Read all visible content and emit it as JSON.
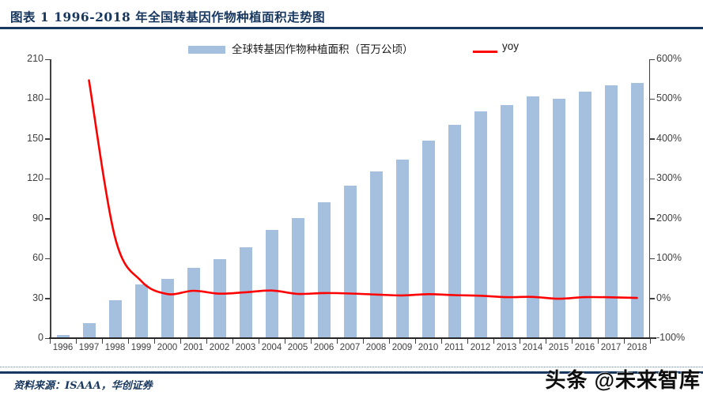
{
  "header": {
    "title": "图表 1  1996-2018 年全国转基因作物种植面积走势图"
  },
  "chart_data": {
    "type": "bar+line",
    "categories": [
      "1996",
      "1997",
      "1998",
      "1999",
      "2000",
      "2001",
      "2002",
      "2003",
      "2004",
      "2005",
      "2006",
      "2007",
      "2008",
      "2009",
      "2010",
      "2011",
      "2012",
      "2013",
      "2014",
      "2015",
      "2016",
      "2017",
      "2018"
    ],
    "series": [
      {
        "name": "全球转基因作物种植面积（百万公顷）",
        "type": "bar",
        "axis": "left",
        "color": "#A5BFDE",
        "values": [
          1.7,
          11.0,
          27.8,
          39.9,
          44.2,
          52.6,
          58.7,
          67.7,
          81.0,
          90.0,
          102.0,
          114.3,
          125.0,
          134.0,
          148.0,
          160.0,
          170.3,
          175.2,
          181.5,
          179.7,
          185.1,
          189.8,
          191.7
        ]
      },
      {
        "name": "yoy",
        "type": "line",
        "axis": "right",
        "color": "#FF0000",
        "values": [
          null,
          547.1,
          152.7,
          43.5,
          10.8,
          19.0,
          11.6,
          15.3,
          19.6,
          11.1,
          13.3,
          12.1,
          9.4,
          7.2,
          10.4,
          8.1,
          6.4,
          2.9,
          3.6,
          -1.0,
          3.0,
          2.5,
          1.0
        ]
      }
    ],
    "left_axis": {
      "min": 0,
      "max": 210,
      "step": 30,
      "tick_labels": [
        "210",
        "180",
        "150",
        "120",
        "90",
        "60",
        "30",
        "0"
      ]
    },
    "right_axis": {
      "min": -100,
      "max": 600,
      "step": 100,
      "tick_labels": [
        "600%",
        "500%",
        "400%",
        "300%",
        "200%",
        "100%",
        "0%",
        "-100%"
      ]
    },
    "legend_position": "top",
    "grid": false,
    "title": "",
    "xlabel": "",
    "ylabel": ""
  },
  "colors": {
    "accent_navy": "#17375E",
    "bar_fill": "#A5BFDE",
    "line_red": "#FF0000",
    "axis_text": "#404040"
  },
  "footer": {
    "source_label": "资料来源：ISAAA，华创证券",
    "watermark": "头条 @未来智库"
  }
}
